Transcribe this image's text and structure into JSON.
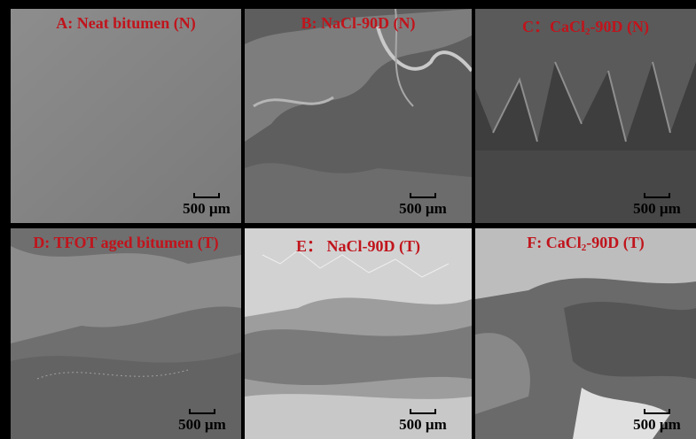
{
  "panels": [
    {
      "id": "A",
      "prefix": "A: Neat bitumen (N)",
      "suffix": "",
      "sub": "",
      "scale": "500 µm"
    },
    {
      "id": "B",
      "prefix": "B: NaCl-90D (N)",
      "suffix": "",
      "sub": "",
      "scale": "500 µm"
    },
    {
      "id": "C",
      "prefix": "C：CaCl",
      "sub": "2",
      "suffix": "-90D (N)",
      "scale": "500 µm"
    },
    {
      "id": "D",
      "prefix": "D: TFOT aged bitumen (T)",
      "suffix": "",
      "sub": "",
      "scale": "500 µm"
    },
    {
      "id": "E",
      "prefix": "E： NaCl-90D (T)",
      "suffix": "",
      "sub": "",
      "scale": "500 µm"
    },
    {
      "id": "F",
      "prefix": "F: CaCl",
      "sub": "2",
      "suffix": "-90D (T)",
      "scale": "500 µm"
    }
  ],
  "colors": {
    "label": "#c0141c",
    "border": "#000000"
  }
}
